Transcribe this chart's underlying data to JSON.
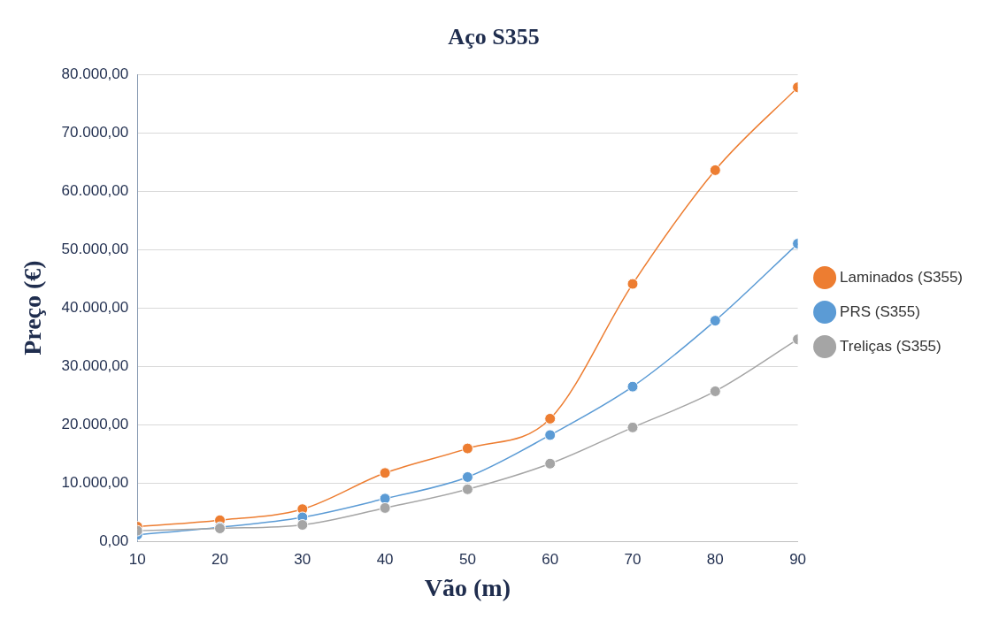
{
  "chart_data": {
    "type": "line",
    "title": "Aço S355",
    "xlabel": "Vão (m)",
    "ylabel": "Preço (€)",
    "x": [
      10,
      20,
      30,
      40,
      50,
      60,
      70,
      80,
      90
    ],
    "series": [
      {
        "name": "Laminados (S355)",
        "color": "#ed7d31",
        "values": [
          2500,
          3600,
          5500,
          11700,
          15900,
          21000,
          44100,
          63600,
          77800
        ]
      },
      {
        "name": "PRS (S355)",
        "color": "#5b9bd5",
        "values": [
          1100,
          2400,
          4100,
          7300,
          11000,
          18200,
          26500,
          37800,
          51000
        ]
      },
      {
        "name": "Treliças (S355)",
        "color": "#a5a5a5",
        "values": [
          1800,
          2200,
          2800,
          5700,
          8900,
          13300,
          19500,
          25700,
          34600
        ]
      }
    ],
    "xlim": [
      10,
      90
    ],
    "xticks": [
      10,
      20,
      30,
      40,
      50,
      60,
      70,
      80,
      90
    ],
    "ylim": [
      0,
      80000
    ],
    "yticks": [
      {
        "value": 0,
        "label": "0,00"
      },
      {
        "value": 10000,
        "label": "10.000,00"
      },
      {
        "value": 20000,
        "label": "20.000,00"
      },
      {
        "value": 30000,
        "label": "30.000,00"
      },
      {
        "value": 40000,
        "label": "40.000,00"
      },
      {
        "value": 50000,
        "label": "50.000,00"
      },
      {
        "value": 60000,
        "label": "60.000,00"
      },
      {
        "value": 70000,
        "label": "70.000,00"
      },
      {
        "value": 80000,
        "label": "80.000,00"
      }
    ],
    "grid": "y",
    "legend": "right",
    "marker": "circle",
    "line_style": "solid"
  }
}
